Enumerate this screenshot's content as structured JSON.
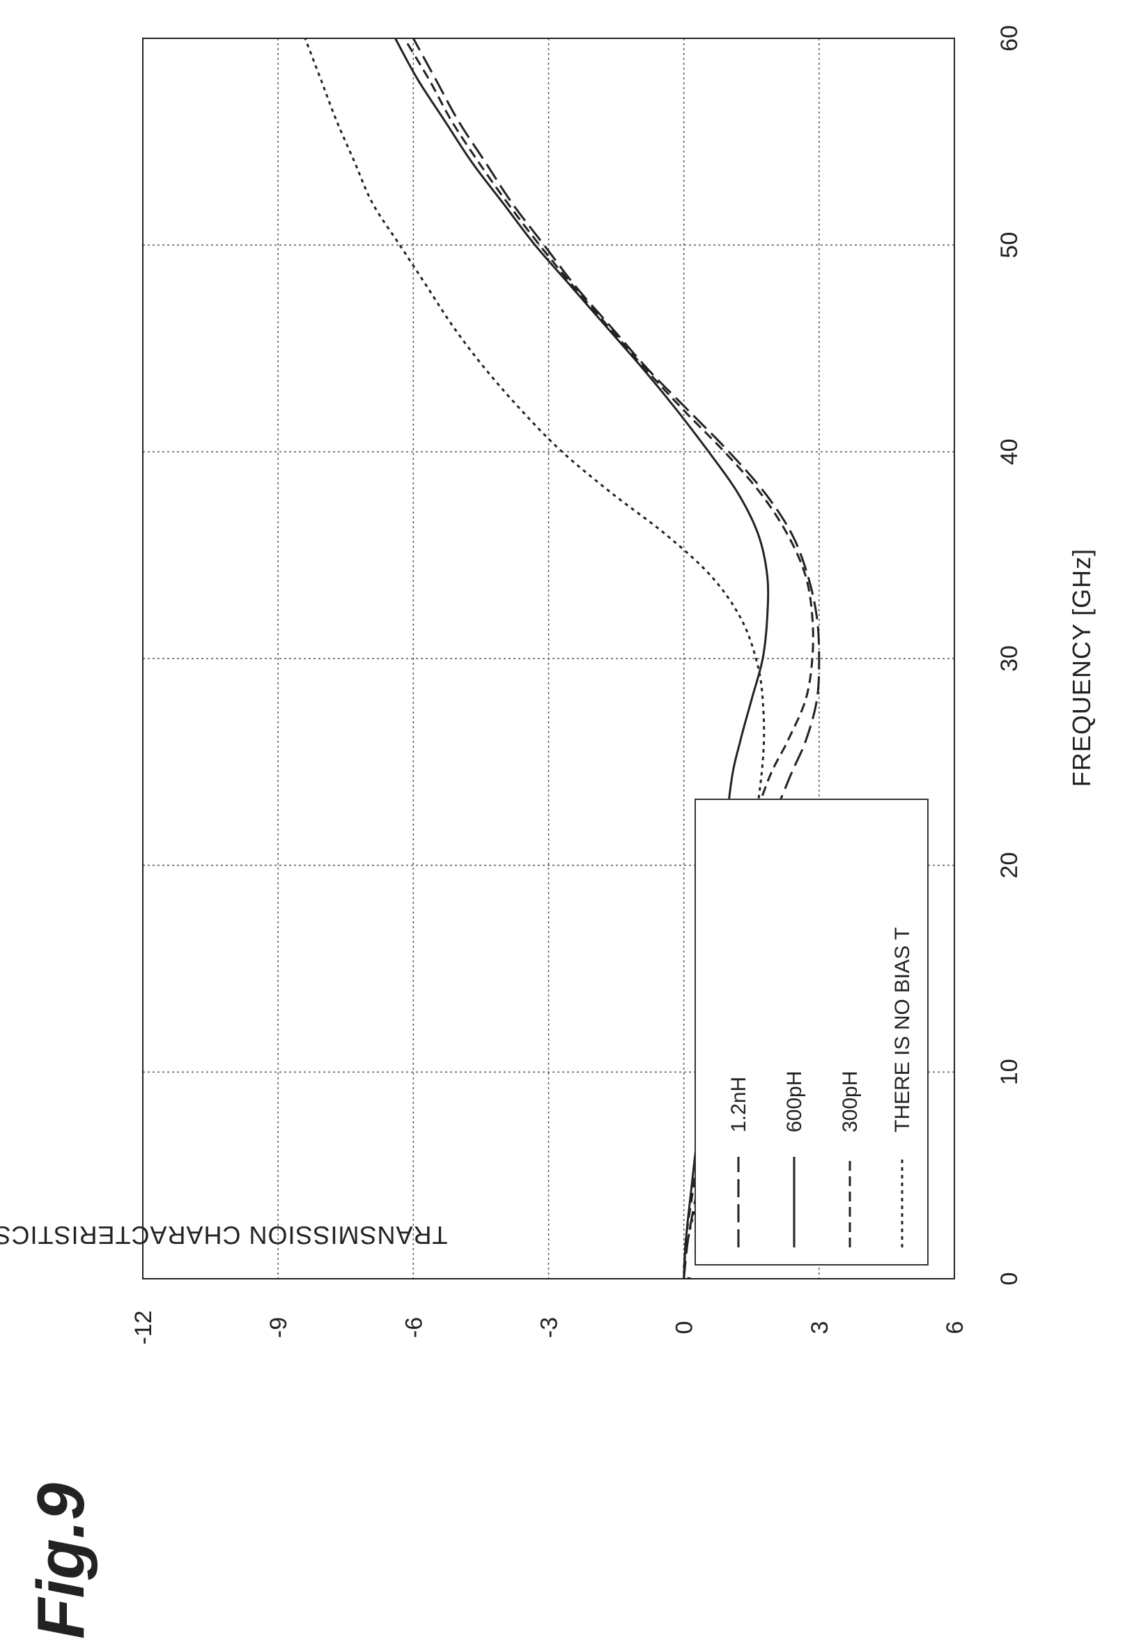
{
  "figure": {
    "label": "Fig.9"
  },
  "chart_data": {
    "type": "line",
    "xlabel": "FREQUENCY [GHz]",
    "ylabel": "TRANSMISSION CHARACTERISTICS (dB)",
    "xlim": [
      0,
      60
    ],
    "ylim": [
      -12,
      6
    ],
    "xticks": [
      0,
      10,
      20,
      30,
      40,
      50,
      60
    ],
    "yticks": [
      6,
      3,
      0,
      -3,
      -6,
      -9,
      -12
    ],
    "xtick_labels": [
      "0",
      "10",
      "20",
      "30",
      "40",
      "50",
      "60"
    ],
    "ytick_labels": [
      "6",
      "3",
      "0",
      "-3",
      "-6",
      "-9",
      "-12"
    ],
    "grid": true,
    "legend_placement": "bottom-left",
    "series": [
      {
        "name": "1.2nH",
        "style": "long-dash",
        "x": [
          0,
          2,
          5,
          10,
          15,
          20,
          24,
          26,
          28,
          30,
          32,
          34,
          36,
          38,
          40,
          42,
          44,
          46,
          48,
          50,
          52,
          54,
          56,
          58,
          60
        ],
        "y": [
          0,
          0.1,
          0.35,
          0.7,
          1.1,
          1.6,
          2.3,
          2.7,
          2.95,
          3.0,
          2.95,
          2.75,
          2.4,
          1.8,
          1.0,
          0.1,
          -0.8,
          -1.6,
          -2.4,
          -3.1,
          -3.8,
          -4.4,
          -5.0,
          -5.5,
          -6.0
        ]
      },
      {
        "name": "600pH",
        "style": "solid",
        "x": [
          0,
          2,
          5,
          10,
          15,
          20,
          24,
          26,
          28,
          30,
          32,
          34,
          36,
          38,
          40,
          42,
          44,
          46,
          48,
          50,
          52,
          54,
          56,
          58,
          60
        ],
        "y": [
          0,
          0.05,
          0.2,
          0.45,
          0.65,
          0.85,
          1.05,
          1.25,
          1.5,
          1.75,
          1.85,
          1.85,
          1.65,
          1.2,
          0.55,
          -0.15,
          -0.9,
          -1.7,
          -2.5,
          -3.3,
          -4.0,
          -4.7,
          -5.3,
          -5.9,
          -6.4
        ]
      },
      {
        "name": "300pH",
        "style": "medium-dash",
        "x": [
          0,
          2,
          5,
          10,
          15,
          20,
          24,
          26,
          28,
          30,
          32,
          34,
          36,
          38,
          40,
          42,
          44,
          46,
          48,
          50,
          52,
          54,
          56,
          58,
          60
        ],
        "y": [
          0,
          0.05,
          0.25,
          0.55,
          0.85,
          1.25,
          1.85,
          2.3,
          2.7,
          2.85,
          2.85,
          2.7,
          2.3,
          1.7,
          0.9,
          0.0,
          -0.85,
          -1.65,
          -2.45,
          -3.2,
          -3.9,
          -4.55,
          -5.15,
          -5.65,
          -6.2
        ]
      },
      {
        "name": "THERE IS NO BIAS T",
        "style": "short-dash",
        "x": [
          0,
          0.3,
          2,
          5,
          10,
          15,
          20,
          25,
          28,
          30,
          32,
          34,
          36,
          38,
          40,
          42,
          44,
          46,
          48,
          50,
          52,
          54,
          56,
          58,
          60
        ],
        "y": [
          0.15,
          0,
          0.1,
          0.4,
          0.75,
          1.1,
          1.45,
          1.75,
          1.75,
          1.6,
          1.25,
          0.6,
          -0.4,
          -1.6,
          -2.7,
          -3.6,
          -4.4,
          -5.1,
          -5.7,
          -6.3,
          -6.9,
          -7.3,
          -7.7,
          -8.05,
          -8.4
        ]
      }
    ]
  }
}
